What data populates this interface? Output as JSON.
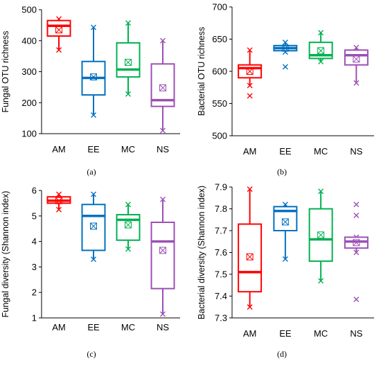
{
  "chart_data": [
    {
      "type": "box",
      "panel_label": "(a)",
      "ylabel": "Fungal OTU richness",
      "ylim": [
        100,
        500
      ],
      "yticks": [
        100,
        200,
        300,
        400,
        500
      ],
      "grid": false,
      "categories": [
        "AM",
        "EE",
        "MC",
        "NS"
      ],
      "colors": [
        "#ff0000",
        "#0070c0",
        "#00b050",
        "#9b4fb5"
      ],
      "boxes": [
        {
          "category": "AM",
          "min": 370,
          "q1": 415,
          "median": 448,
          "q3": 465,
          "max": 470,
          "mean": 435,
          "outliers": []
        },
        {
          "category": "EE",
          "min": 160,
          "q1": 225,
          "median": 280,
          "q3": 333,
          "max": 443,
          "mean": 283,
          "outliers": []
        },
        {
          "category": "MC",
          "min": 228,
          "q1": 283,
          "median": 307,
          "q3": 393,
          "max": 457,
          "mean": 330,
          "outliers": []
        },
        {
          "category": "NS",
          "min": 110,
          "q1": 188,
          "median": 208,
          "q3": 325,
          "max": 400,
          "mean": 248,
          "outliers": []
        }
      ]
    },
    {
      "type": "box",
      "panel_label": "(b)",
      "ylabel": "Bacterial OTU richness",
      "ylim": [
        500,
        700
      ],
      "yticks": [
        500,
        550,
        600,
        650,
        700
      ],
      "grid": false,
      "categories": [
        "AM",
        "EE",
        "MC",
        "NS"
      ],
      "colors": [
        "#ff0000",
        "#0070c0",
        "#00b050",
        "#9b4fb5"
      ],
      "boxes": [
        {
          "category": "AM",
          "min": 578,
          "q1": 590,
          "median": 605,
          "q3": 610,
          "max": 633,
          "mean": 600,
          "outliers": [
            562
          ]
        },
        {
          "category": "EE",
          "min": 630,
          "q1": 632,
          "median": 636,
          "q3": 640,
          "max": 645,
          "mean": 636,
          "outliers": [
            607
          ]
        },
        {
          "category": "MC",
          "min": 615,
          "q1": 620,
          "median": 625,
          "q3": 645,
          "max": 660,
          "mean": 632,
          "outliers": []
        },
        {
          "category": "NS",
          "min": 582,
          "q1": 610,
          "median": 625,
          "q3": 633,
          "max": 637,
          "mean": 619,
          "outliers": []
        }
      ]
    },
    {
      "type": "box",
      "panel_label": "(c)",
      "ylabel": "Fungal diversity (Shannon index)",
      "ylim": [
        1,
        6
      ],
      "yticks": [
        1,
        2,
        3,
        4,
        5,
        6
      ],
      "grid": false,
      "categories": [
        "AM",
        "EE",
        "MC",
        "NS"
      ],
      "colors": [
        "#ff0000",
        "#0070c0",
        "#00b050",
        "#9b4fb5"
      ],
      "boxes": [
        {
          "category": "AM",
          "min": 5.25,
          "q1": 5.5,
          "median": 5.6,
          "q3": 5.75,
          "max": 5.85,
          "mean": 5.6,
          "outliers": []
        },
        {
          "category": "EE",
          "min": 3.3,
          "q1": 3.65,
          "median": 5.0,
          "q3": 5.45,
          "max": 5.85,
          "mean": 4.6,
          "outliers": []
        },
        {
          "category": "MC",
          "min": 3.7,
          "q1": 4.05,
          "median": 4.85,
          "q3": 5.05,
          "max": 5.45,
          "mean": 4.65,
          "outliers": []
        },
        {
          "category": "NS",
          "min": 1.15,
          "q1": 2.15,
          "median": 4.0,
          "q3": 4.75,
          "max": 5.65,
          "mean": 3.65,
          "outliers": []
        }
      ]
    },
    {
      "type": "box",
      "panel_label": "(d)",
      "ylabel": "Bacterial diversity (Shannon index)",
      "ylim": [
        7.3,
        7.9
      ],
      "yticks": [
        7.3,
        7.4,
        7.5,
        7.6,
        7.7,
        7.8,
        7.9
      ],
      "grid": false,
      "categories": [
        "AM",
        "EE",
        "MC",
        "NS"
      ],
      "colors": [
        "#ff0000",
        "#0070c0",
        "#00b050",
        "#9b4fb5"
      ],
      "boxes": [
        {
          "category": "AM",
          "min": 7.35,
          "q1": 7.42,
          "median": 7.51,
          "q3": 7.73,
          "max": 7.89,
          "mean": 7.58,
          "outliers": []
        },
        {
          "category": "EE",
          "min": 7.57,
          "q1": 7.7,
          "median": 7.79,
          "q3": 7.81,
          "max": 7.82,
          "mean": 7.74,
          "outliers": []
        },
        {
          "category": "MC",
          "min": 7.47,
          "q1": 7.56,
          "median": 7.66,
          "q3": 7.8,
          "max": 7.88,
          "mean": 7.68,
          "outliers": []
        },
        {
          "category": "NS",
          "min": 7.6,
          "q1": 7.62,
          "median": 7.65,
          "q3": 7.67,
          "max": 7.67,
          "mean": 7.645,
          "outliers": [
            7.82,
            7.77,
            7.385
          ]
        }
      ]
    }
  ]
}
